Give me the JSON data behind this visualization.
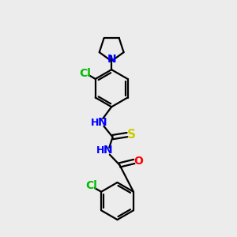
{
  "bg_color": "#ececec",
  "atom_colors": {
    "C": "#000000",
    "N": "#0000ff",
    "O": "#ff0000",
    "S": "#cccc00",
    "Cl": "#00bb00",
    "H": "#000000"
  },
  "bond_color": "#000000",
  "bond_width": 1.6,
  "font_size": 10,
  "fig_size": [
    3.0,
    3.0
  ],
  "dpi": 100
}
